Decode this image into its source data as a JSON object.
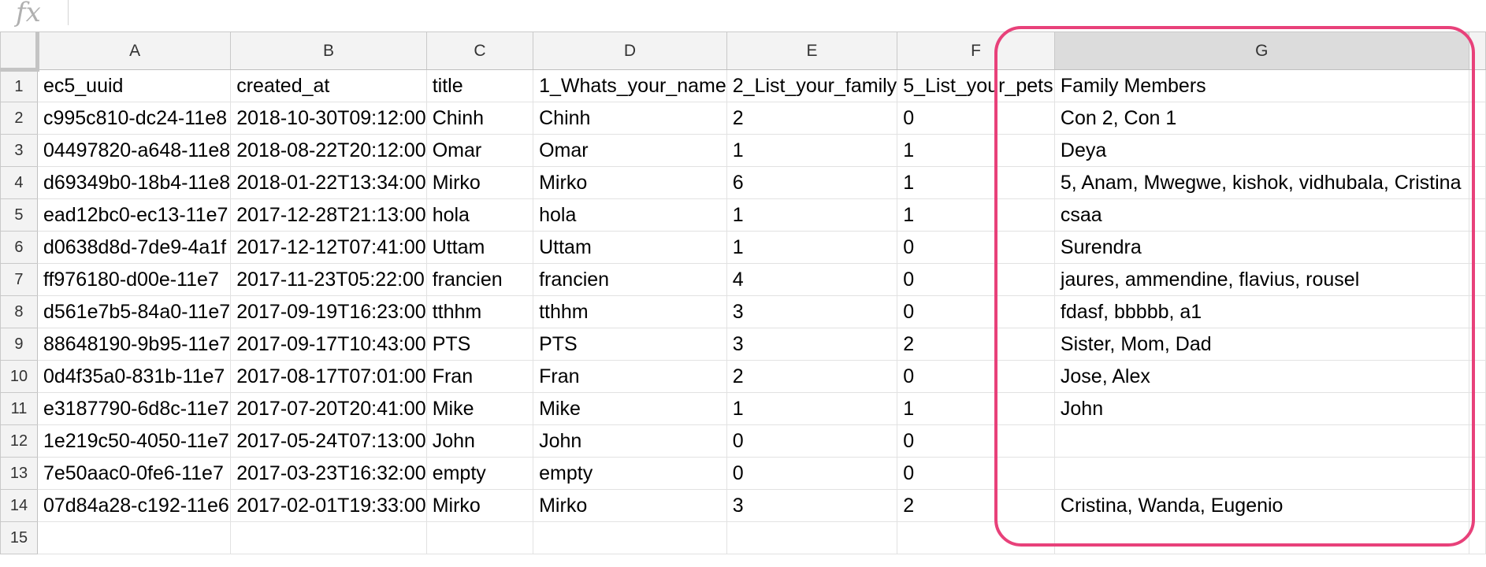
{
  "formula_bar": {
    "icon_label": "fx",
    "value": ""
  },
  "columns": [
    "A",
    "B",
    "C",
    "D",
    "E",
    "F",
    "G"
  ],
  "selected_column": "G",
  "rows": [
    {
      "n": "1",
      "cells": [
        "ec5_uuid",
        "created_at",
        "title",
        "1_Whats_your_name",
        "2_List_your_family",
        "5_List_your_pets",
        "Family Members"
      ]
    },
    {
      "n": "2",
      "cells": [
        "c995c810-dc24-11e8",
        "2018-10-30T09:12:00",
        "Chinh",
        "Chinh",
        "2",
        "0",
        "Con 2, Con 1"
      ]
    },
    {
      "n": "3",
      "cells": [
        "04497820-a648-11e8",
        "2018-08-22T20:12:00",
        "Omar",
        "Omar",
        "1",
        "1",
        "Deya"
      ]
    },
    {
      "n": "4",
      "cells": [
        "d69349b0-18b4-11e8",
        "2018-01-22T13:34:00",
        "Mirko",
        "Mirko",
        "6",
        "1",
        "5, Anam, Mwegwe, kishok, vidhubala, Cristina"
      ]
    },
    {
      "n": "5",
      "cells": [
        "ead12bc0-ec13-11e7",
        "2017-12-28T21:13:00",
        "hola",
        "hola",
        "1",
        "1",
        "csaa"
      ]
    },
    {
      "n": "6",
      "cells": [
        "d0638d8d-7de9-4a1f",
        "2017-12-12T07:41:00",
        "Uttam",
        "Uttam",
        "1",
        "0",
        "Surendra"
      ]
    },
    {
      "n": "7",
      "cells": [
        "ff976180-d00e-11e7",
        "2017-11-23T05:22:00",
        "francien",
        "francien",
        "4",
        "0",
        "jaures, ammendine, flavius, rousel"
      ]
    },
    {
      "n": "8",
      "cells": [
        "d561e7b5-84a0-11e7",
        "2017-09-19T16:23:00",
        "tthhm",
        "tthhm",
        "3",
        "0",
        "fdasf, bbbbb, a1"
      ]
    },
    {
      "n": "9",
      "cells": [
        "88648190-9b95-11e7",
        "2017-09-17T10:43:00",
        "PTS",
        "PTS",
        "3",
        "2",
        "Sister, Mom, Dad"
      ]
    },
    {
      "n": "10",
      "cells": [
        "0d4f35a0-831b-11e7",
        "2017-08-17T07:01:00",
        "Fran",
        "Fran",
        "2",
        "0",
        "Jose, Alex"
      ]
    },
    {
      "n": "11",
      "cells": [
        "e3187790-6d8c-11e7",
        "2017-07-20T20:41:00",
        "Mike",
        "Mike",
        "1",
        "1",
        "John"
      ]
    },
    {
      "n": "12",
      "cells": [
        "1e219c50-4050-11e7",
        "2017-05-24T07:13:00",
        "John",
        "John",
        "0",
        "0",
        ""
      ]
    },
    {
      "n": "13",
      "cells": [
        "7e50aac0-0fe6-11e7",
        "2017-03-23T16:32:00",
        "empty",
        "empty",
        "0",
        "0",
        ""
      ]
    },
    {
      "n": "14",
      "cells": [
        "07d84a28-c192-11e6",
        "2017-02-01T19:33:00",
        "Mirko",
        "Mirko",
        "3",
        "2",
        "Cristina, Wanda, Eugenio"
      ]
    },
    {
      "n": "15",
      "cells": [
        "",
        "",
        "",
        "",
        "",
        "",
        ""
      ]
    }
  ],
  "annotation": {
    "color": "#e8417a",
    "target_column": "G"
  }
}
